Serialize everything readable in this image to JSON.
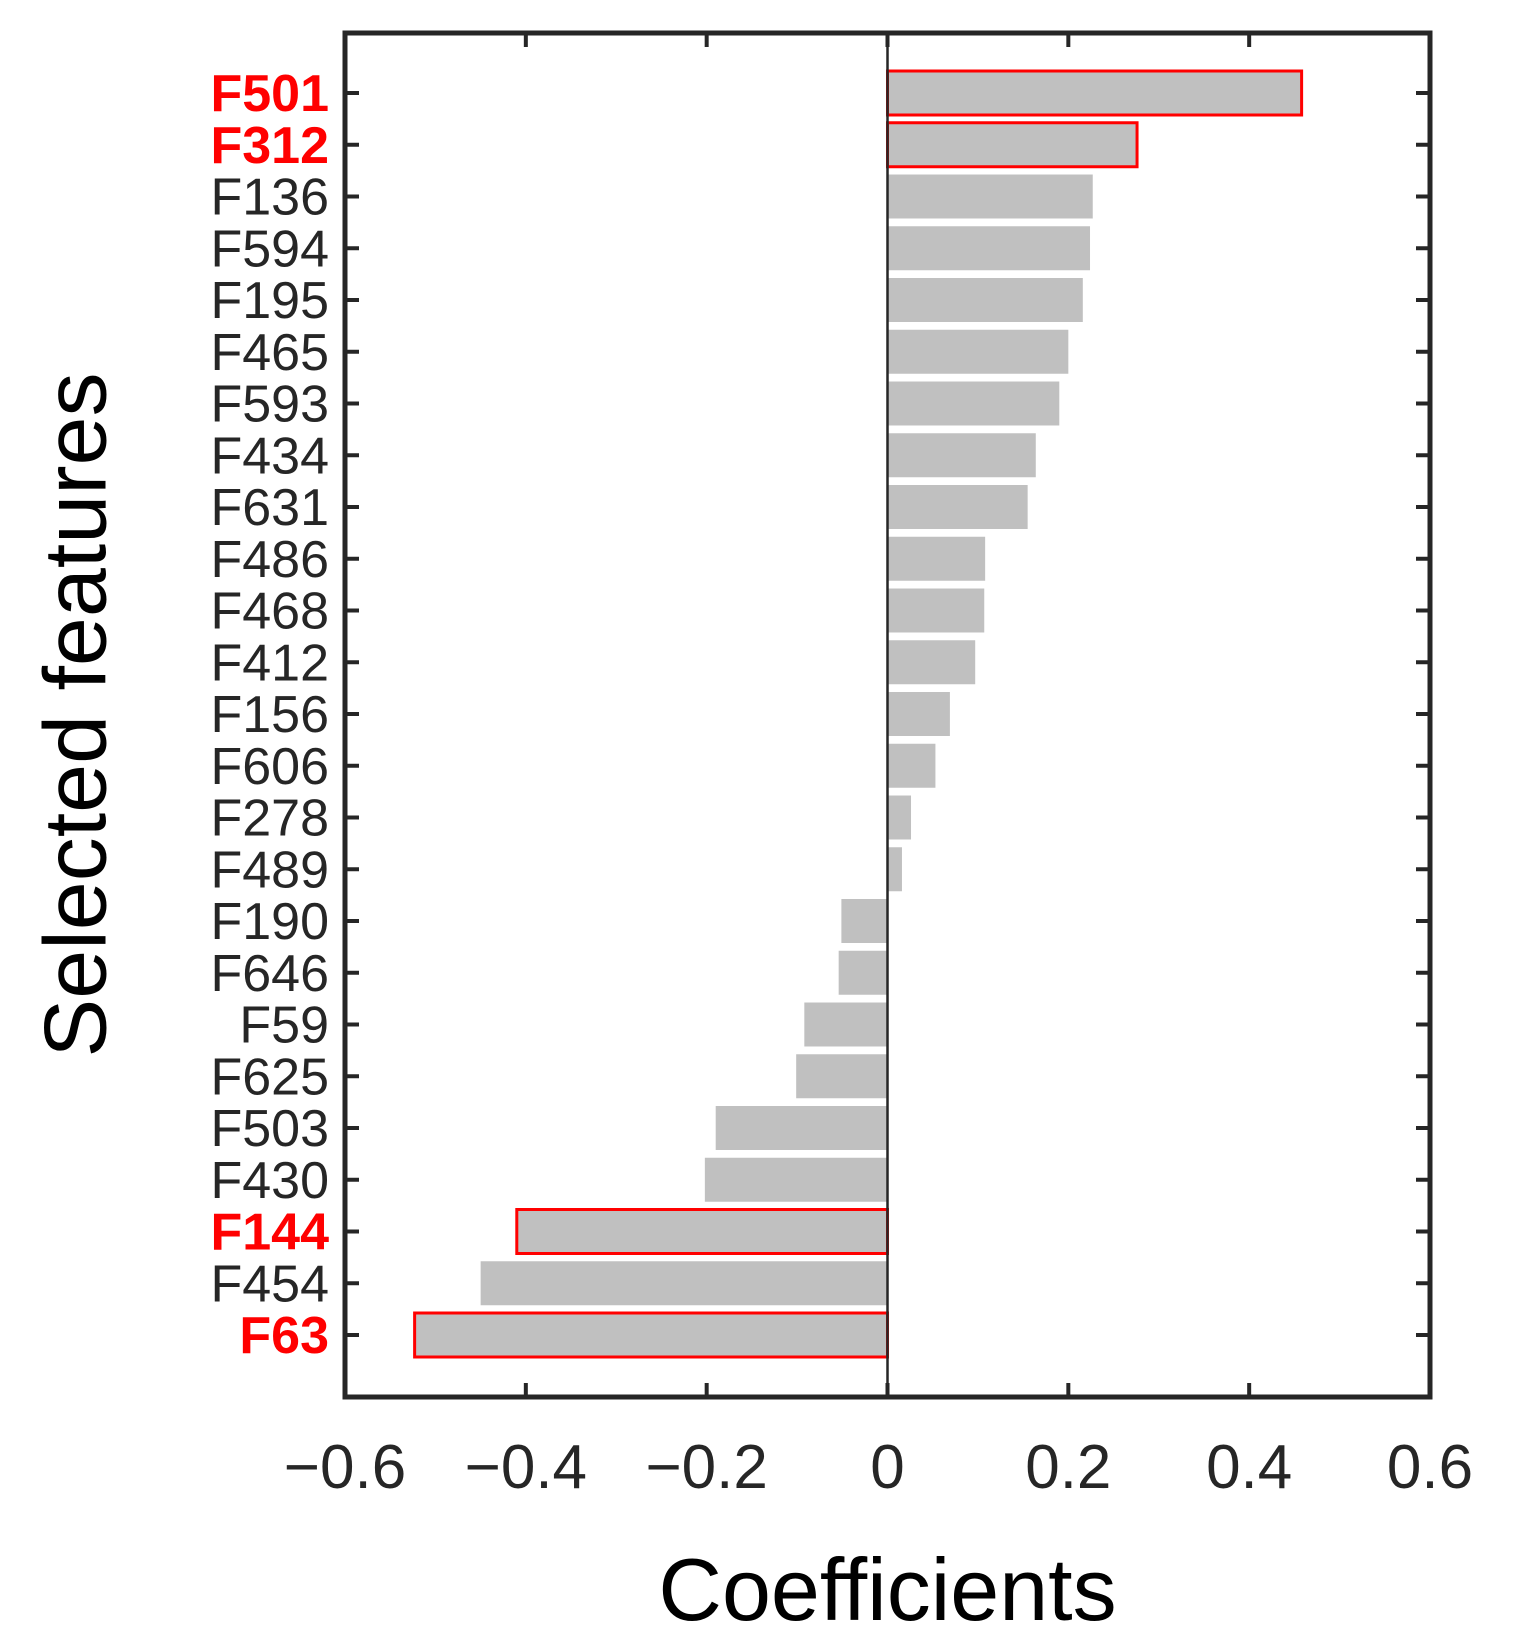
{
  "chart_data": {
    "type": "bar",
    "orientation": "horizontal",
    "xlabel": "Coefficients",
    "ylabel": "Selected features",
    "xlim": [
      -0.6,
      0.6
    ],
    "xticks": [
      -0.6,
      -0.4,
      -0.2,
      0,
      0.2,
      0.4,
      0.6
    ],
    "xtick_labels": [
      "−0.6",
      "−0.4",
      "−0.2",
      "0",
      "0.2",
      "0.4",
      "0.6"
    ],
    "grid": false,
    "categories": [
      "F501",
      "F312",
      "F136",
      "F594",
      "F195",
      "F465",
      "F593",
      "F434",
      "F631",
      "F486",
      "F468",
      "F412",
      "F156",
      "F606",
      "F278",
      "F489",
      "F190",
      "F646",
      "F59",
      "F625",
      "F503",
      "F430",
      "F144",
      "F454",
      "F63"
    ],
    "values": [
      0.458,
      0.276,
      0.227,
      0.224,
      0.216,
      0.2,
      0.19,
      0.164,
      0.155,
      0.108,
      0.107,
      0.097,
      0.069,
      0.053,
      0.026,
      0.016,
      -0.051,
      -0.054,
      -0.092,
      -0.101,
      -0.19,
      -0.202,
      -0.41,
      -0.45,
      -0.523
    ],
    "highlighted": [
      "F501",
      "F312",
      "F144",
      "F63"
    ],
    "colors": {
      "bar_fill": "#c0c0c0",
      "highlight": "#ff0000",
      "axis": "#262626",
      "text": "#262626"
    }
  }
}
